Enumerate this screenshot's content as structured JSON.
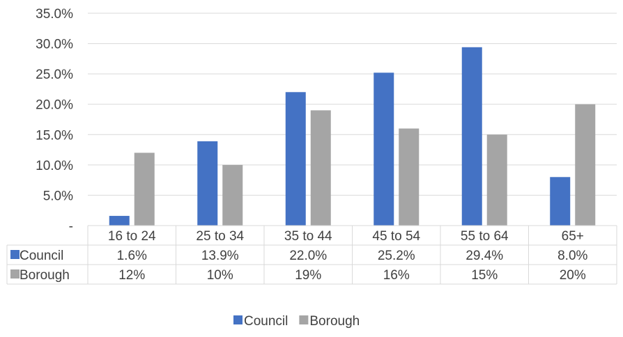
{
  "chart_data": {
    "type": "bar",
    "categories": [
      "16 to 24",
      "25 to 34",
      "35 to 44",
      "45 to 54",
      "55 to 64",
      "65+"
    ],
    "series": [
      {
        "name": "Council",
        "values": [
          1.6,
          13.9,
          22.0,
          25.2,
          29.4,
          8.0
        ],
        "table_labels": [
          "1.6%",
          "13.9%",
          "22.0%",
          "25.2%",
          "29.4%",
          "8.0%"
        ],
        "color": "#4472C4"
      },
      {
        "name": "Borough",
        "values": [
          12,
          10,
          19,
          16,
          15,
          20
        ],
        "table_labels": [
          "12%",
          "10%",
          "19%",
          "16%",
          "15%",
          "20%"
        ],
        "color": "#A5A5A5"
      }
    ],
    "y_ticks": [
      "-",
      "5.0%",
      "10.0%",
      "15.0%",
      "20.0%",
      "25.0%",
      "30.0%",
      "35.0%"
    ],
    "ylim": [
      0,
      35
    ],
    "grid": true,
    "data_table": true,
    "legend": {
      "position": "bottom",
      "entries": [
        "Council",
        "Borough"
      ]
    }
  }
}
